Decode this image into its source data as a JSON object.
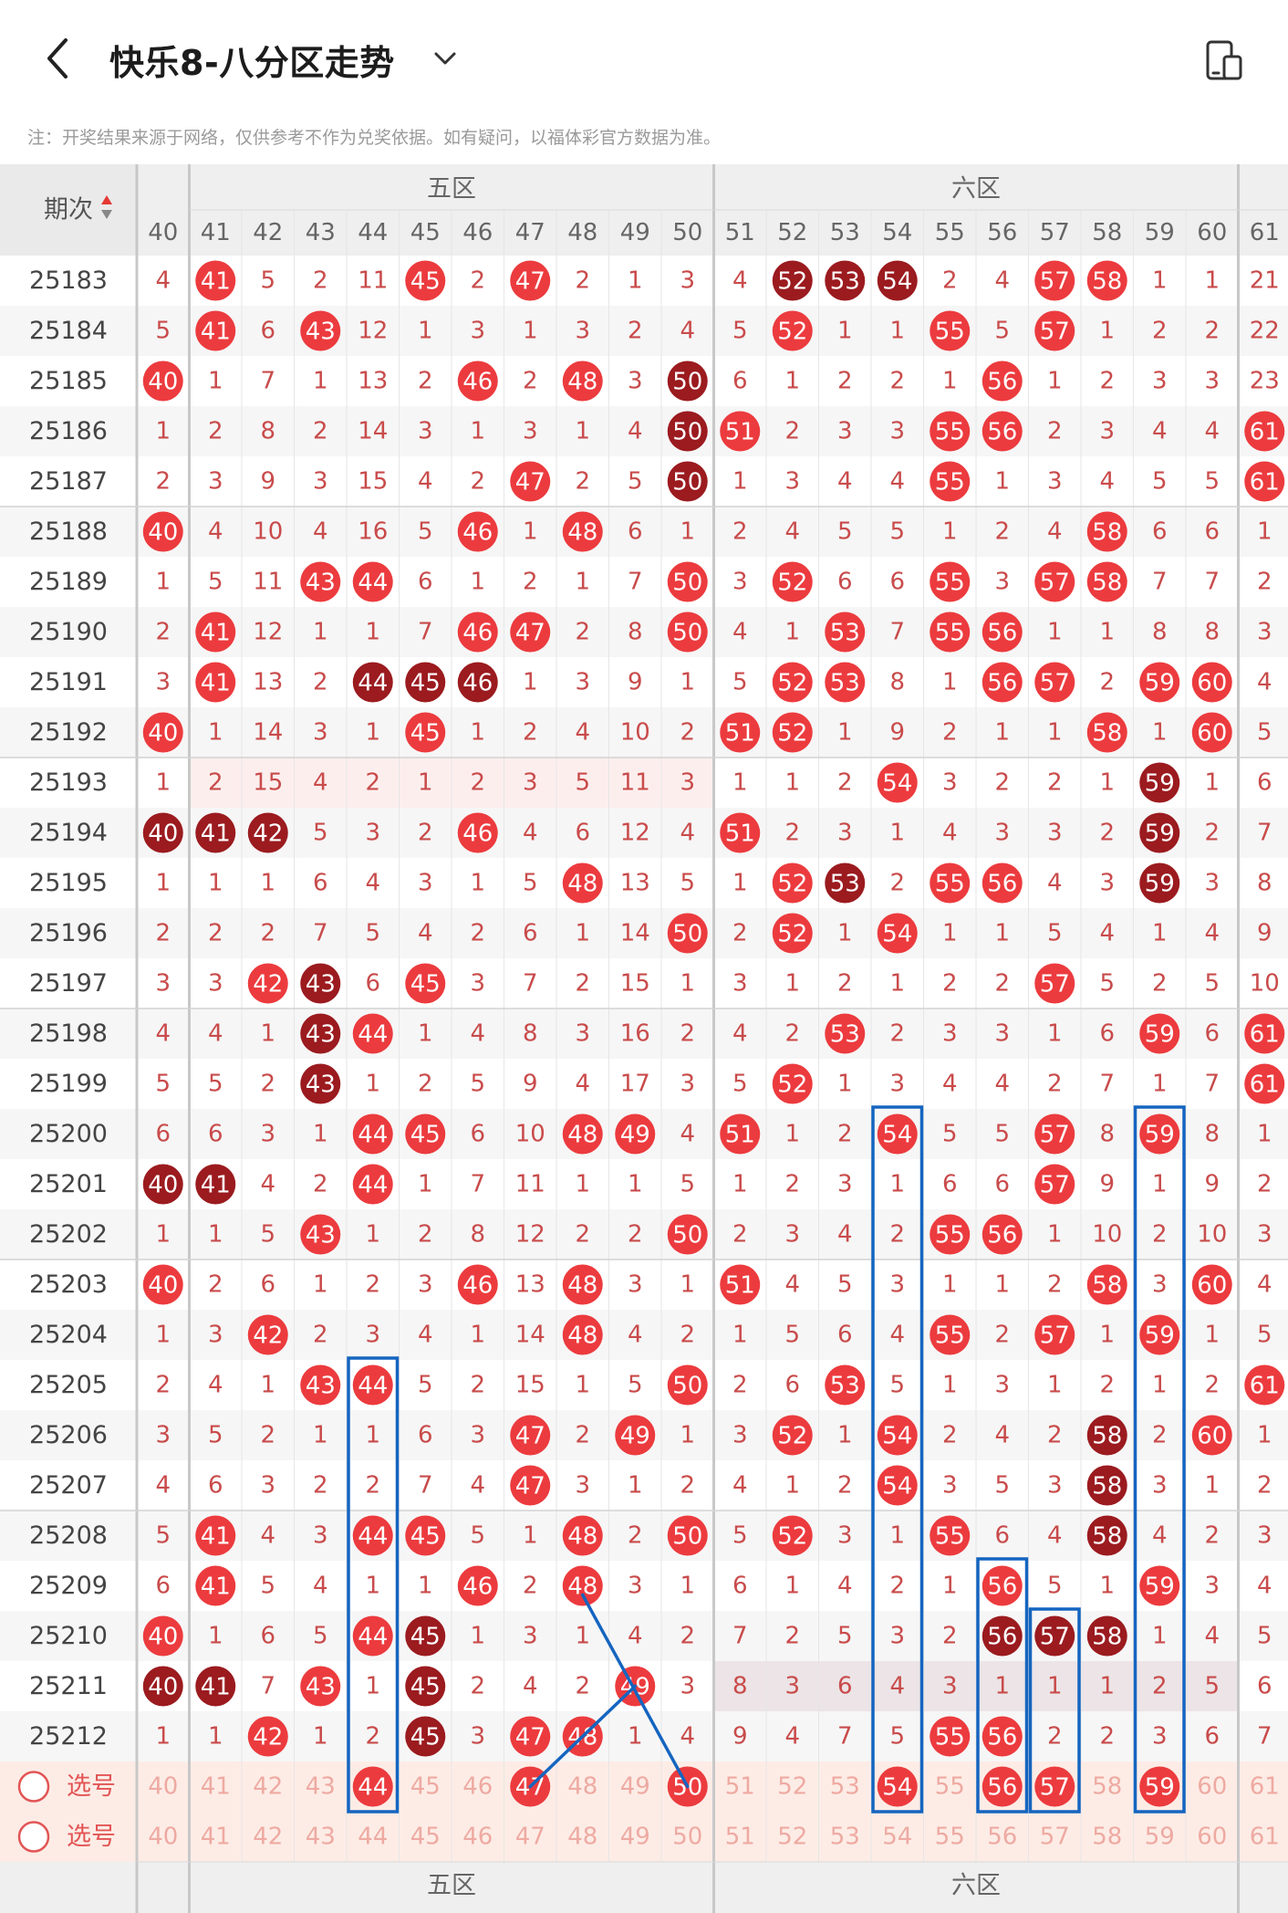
{
  "header": {
    "title": "快乐8-八分区走势",
    "notice": "注：开奖结果来源于网络，仅供参考不作为兑奖依据。如有疑问，以福体彩官方数据为准。"
  },
  "table": {
    "period_header": "期次",
    "zones": [
      {
        "label": "五区",
        "from": 41,
        "to": 50
      },
      {
        "label": "六区",
        "from": 51,
        "to": 60
      }
    ],
    "columns": [
      40,
      41,
      42,
      43,
      44,
      45,
      46,
      47,
      48,
      49,
      50,
      51,
      52,
      53,
      54,
      55,
      56,
      57,
      58,
      59,
      60,
      61
    ],
    "select_label": "选号",
    "rows": [
      {
        "period": "25183",
        "cells": [
          "4",
          "41",
          "5",
          "2",
          "11",
          "45",
          "2",
          "47",
          "2",
          "1",
          "3",
          "4",
          "52",
          "53",
          "54",
          "2",
          "4",
          "57",
          "58",
          "1",
          "1",
          "21"
        ],
        "hot": [
          41,
          45,
          47,
          57,
          58
        ],
        "dark": [
          52,
          53,
          54
        ]
      },
      {
        "period": "25184",
        "cells": [
          "5",
          "41",
          "6",
          "43",
          "12",
          "1",
          "3",
          "1",
          "3",
          "2",
          "4",
          "5",
          "52",
          "1",
          "1",
          "55",
          "5",
          "57",
          "1",
          "2",
          "2",
          "22"
        ],
        "hot": [
          41,
          43,
          52,
          55,
          57
        ],
        "dark": []
      },
      {
        "period": "25185",
        "cells": [
          "40",
          "1",
          "7",
          "1",
          "13",
          "2",
          "46",
          "2",
          "48",
          "3",
          "50",
          "6",
          "1",
          "2",
          "2",
          "1",
          "56",
          "1",
          "2",
          "3",
          "3",
          "23"
        ],
        "hot": [
          40,
          46,
          48,
          56
        ],
        "dark": [
          50
        ]
      },
      {
        "period": "25186",
        "cells": [
          "1",
          "2",
          "8",
          "2",
          "14",
          "3",
          "1",
          "3",
          "1",
          "4",
          "50",
          "51",
          "2",
          "3",
          "3",
          "55",
          "56",
          "2",
          "3",
          "4",
          "4",
          "61"
        ],
        "hot": [
          51,
          55,
          56,
          61
        ],
        "dark": [
          50
        ]
      },
      {
        "period": "25187",
        "cells": [
          "2",
          "3",
          "9",
          "3",
          "15",
          "4",
          "2",
          "47",
          "2",
          "5",
          "50",
          "1",
          "3",
          "4",
          "4",
          "55",
          "1",
          "3",
          "4",
          "5",
          "5",
          "61"
        ],
        "hot": [
          47,
          55,
          61
        ],
        "dark": [
          50
        ]
      },
      {
        "period": "25188",
        "cells": [
          "40",
          "4",
          "10",
          "4",
          "16",
          "5",
          "46",
          "1",
          "48",
          "6",
          "1",
          "2",
          "4",
          "5",
          "5",
          "1",
          "2",
          "4",
          "58",
          "6",
          "6",
          "1"
        ],
        "hot": [
          40,
          46,
          48,
          58
        ],
        "dark": []
      },
      {
        "period": "25189",
        "cells": [
          "1",
          "5",
          "11",
          "43",
          "44",
          "6",
          "1",
          "2",
          "1",
          "7",
          "50",
          "3",
          "52",
          "6",
          "6",
          "55",
          "3",
          "57",
          "58",
          "7",
          "7",
          "2"
        ],
        "hot": [
          43,
          44,
          50,
          52,
          55,
          57,
          58
        ],
        "dark": []
      },
      {
        "period": "25190",
        "cells": [
          "2",
          "41",
          "12",
          "1",
          "1",
          "7",
          "46",
          "47",
          "2",
          "8",
          "50",
          "4",
          "1",
          "53",
          "7",
          "55",
          "56",
          "1",
          "1",
          "8",
          "8",
          "3"
        ],
        "hot": [
          41,
          46,
          47,
          50,
          53,
          55,
          56
        ],
        "dark": []
      },
      {
        "period": "25191",
        "cells": [
          "3",
          "41",
          "13",
          "2",
          "44",
          "45",
          "46",
          "1",
          "3",
          "9",
          "1",
          "5",
          "52",
          "53",
          "8",
          "1",
          "56",
          "57",
          "2",
          "59",
          "60",
          "4"
        ],
        "hot": [
          41,
          52,
          53,
          56,
          57,
          59,
          60
        ],
        "dark": [
          44,
          45,
          46
        ]
      },
      {
        "period": "25192",
        "cells": [
          "40",
          "1",
          "14",
          "3",
          "1",
          "45",
          "1",
          "2",
          "4",
          "10",
          "2",
          "51",
          "52",
          "1",
          "9",
          "2",
          "1",
          "1",
          "58",
          "1",
          "60",
          "5"
        ],
        "hot": [
          40,
          45,
          51,
          52,
          58,
          60
        ],
        "dark": []
      },
      {
        "period": "25193",
        "cells": [
          "1",
          "2",
          "15",
          "4",
          "2",
          "1",
          "2",
          "3",
          "5",
          "11",
          "3",
          "1",
          "1",
          "2",
          "54",
          "3",
          "2",
          "2",
          "1",
          "59",
          "1",
          "6"
        ],
        "hot": [
          54
        ],
        "dark": [
          59
        ]
      },
      {
        "period": "25194",
        "cells": [
          "40",
          "41",
          "42",
          "5",
          "3",
          "2",
          "46",
          "4",
          "6",
          "12",
          "4",
          "51",
          "2",
          "3",
          "1",
          "4",
          "3",
          "3",
          "2",
          "59",
          "2",
          "7"
        ],
        "hot": [
          46,
          51
        ],
        "dark": [
          40,
          41,
          42,
          59
        ]
      },
      {
        "period": "25195",
        "cells": [
          "1",
          "1",
          "1",
          "6",
          "4",
          "3",
          "1",
          "5",
          "48",
          "13",
          "5",
          "1",
          "52",
          "53",
          "2",
          "55",
          "56",
          "4",
          "3",
          "59",
          "3",
          "8"
        ],
        "hot": [
          48,
          52,
          55,
          56
        ],
        "dark": [
          53,
          59
        ]
      },
      {
        "period": "25196",
        "cells": [
          "2",
          "2",
          "2",
          "7",
          "5",
          "4",
          "2",
          "6",
          "1",
          "14",
          "50",
          "2",
          "52",
          "1",
          "54",
          "1",
          "1",
          "5",
          "4",
          "1",
          "4",
          "9"
        ],
        "hot": [
          50,
          52,
          54
        ],
        "dark": []
      },
      {
        "period": "25197",
        "cells": [
          "3",
          "3",
          "42",
          "43",
          "6",
          "45",
          "3",
          "7",
          "2",
          "15",
          "1",
          "3",
          "1",
          "2",
          "1",
          "2",
          "2",
          "57",
          "5",
          "2",
          "5",
          "10"
        ],
        "hot": [
          42,
          45,
          57
        ],
        "dark": [
          43
        ]
      },
      {
        "period": "25198",
        "cells": [
          "4",
          "4",
          "1",
          "43",
          "44",
          "1",
          "4",
          "8",
          "3",
          "16",
          "2",
          "4",
          "2",
          "53",
          "2",
          "3",
          "3",
          "1",
          "6",
          "59",
          "6",
          "61"
        ],
        "hot": [
          44,
          53,
          59,
          61
        ],
        "dark": [
          43
        ]
      },
      {
        "period": "25199",
        "cells": [
          "5",
          "5",
          "2",
          "43",
          "1",
          "2",
          "5",
          "9",
          "4",
          "17",
          "3",
          "5",
          "52",
          "1",
          "3",
          "4",
          "4",
          "2",
          "7",
          "1",
          "7",
          "61"
        ],
        "hot": [
          52,
          61
        ],
        "dark": [
          43
        ]
      },
      {
        "period": "25200",
        "cells": [
          "6",
          "6",
          "3",
          "1",
          "44",
          "45",
          "6",
          "10",
          "48",
          "49",
          "4",
          "51",
          "1",
          "2",
          "54",
          "5",
          "5",
          "57",
          "8",
          "59",
          "8",
          "1"
        ],
        "hot": [
          44,
          45,
          48,
          49,
          51,
          54,
          57,
          59
        ],
        "dark": []
      },
      {
        "period": "25201",
        "cells": [
          "40",
          "41",
          "4",
          "2",
          "44",
          "1",
          "7",
          "11",
          "1",
          "1",
          "5",
          "1",
          "2",
          "3",
          "1",
          "6",
          "6",
          "57",
          "9",
          "1",
          "9",
          "2"
        ],
        "hot": [
          44,
          57
        ],
        "dark": [
          40,
          41
        ]
      },
      {
        "period": "25202",
        "cells": [
          "1",
          "1",
          "5",
          "43",
          "1",
          "2",
          "8",
          "12",
          "2",
          "2",
          "50",
          "2",
          "3",
          "4",
          "2",
          "55",
          "56",
          "1",
          "10",
          "2",
          "10",
          "3"
        ],
        "hot": [
          43,
          50,
          55,
          56
        ],
        "dark": []
      },
      {
        "period": "25203",
        "cells": [
          "40",
          "2",
          "6",
          "1",
          "2",
          "3",
          "46",
          "13",
          "48",
          "3",
          "1",
          "51",
          "4",
          "5",
          "3",
          "1",
          "1",
          "2",
          "58",
          "3",
          "60",
          "4"
        ],
        "hot": [
          40,
          46,
          48,
          51,
          58,
          60
        ],
        "dark": []
      },
      {
        "period": "25204",
        "cells": [
          "1",
          "3",
          "42",
          "2",
          "3",
          "4",
          "1",
          "14",
          "48",
          "4",
          "2",
          "1",
          "5",
          "6",
          "4",
          "55",
          "2",
          "57",
          "1",
          "59",
          "1",
          "5"
        ],
        "hot": [
          42,
          48,
          55,
          57,
          59
        ],
        "dark": []
      },
      {
        "period": "25205",
        "cells": [
          "2",
          "4",
          "1",
          "43",
          "44",
          "5",
          "2",
          "15",
          "1",
          "5",
          "50",
          "2",
          "6",
          "53",
          "5",
          "1",
          "3",
          "1",
          "2",
          "1",
          "2",
          "61"
        ],
        "hot": [
          43,
          44,
          50,
          53,
          61
        ],
        "dark": []
      },
      {
        "period": "25206",
        "cells": [
          "3",
          "5",
          "2",
          "1",
          "1",
          "6",
          "3",
          "47",
          "2",
          "49",
          "1",
          "3",
          "52",
          "1",
          "54",
          "2",
          "4",
          "2",
          "58",
          "2",
          "60",
          "1"
        ],
        "hot": [
          47,
          49,
          52,
          54,
          60
        ],
        "dark": [
          58
        ]
      },
      {
        "period": "25207",
        "cells": [
          "4",
          "6",
          "3",
          "2",
          "2",
          "7",
          "4",
          "47",
          "3",
          "1",
          "2",
          "4",
          "1",
          "2",
          "54",
          "3",
          "5",
          "3",
          "58",
          "3",
          "1",
          "2"
        ],
        "hot": [
          47,
          54
        ],
        "dark": [
          58
        ]
      },
      {
        "period": "25208",
        "cells": [
          "5",
          "41",
          "4",
          "3",
          "44",
          "45",
          "5",
          "1",
          "48",
          "2",
          "50",
          "5",
          "52",
          "3",
          "1",
          "55",
          "6",
          "4",
          "58",
          "4",
          "2",
          "3"
        ],
        "hot": [
          41,
          44,
          45,
          48,
          50,
          52,
          55
        ],
        "dark": [
          58
        ]
      },
      {
        "period": "25209",
        "cells": [
          "6",
          "41",
          "5",
          "4",
          "1",
          "1",
          "46",
          "2",
          "48",
          "3",
          "1",
          "6",
          "1",
          "4",
          "2",
          "1",
          "56",
          "5",
          "1",
          "59",
          "3",
          "4"
        ],
        "hot": [
          41,
          46,
          48,
          56,
          59
        ],
        "dark": []
      },
      {
        "period": "25210",
        "cells": [
          "40",
          "1",
          "6",
          "5",
          "44",
          "45",
          "1",
          "3",
          "1",
          "4",
          "2",
          "7",
          "2",
          "5",
          "3",
          "2",
          "56",
          "57",
          "58",
          "1",
          "4",
          "5"
        ],
        "hot": [
          40,
          44
        ],
        "dark": [
          45,
          56,
          57,
          58
        ]
      },
      {
        "period": "25211",
        "cells": [
          "40",
          "41",
          "7",
          "43",
          "1",
          "45",
          "2",
          "4",
          "2",
          "49",
          "3",
          "8",
          "3",
          "6",
          "4",
          "3",
          "1",
          "1",
          "1",
          "2",
          "5",
          "6"
        ],
        "hot": [
          43,
          49
        ],
        "dark": [
          40,
          41,
          45
        ]
      },
      {
        "period": "25212",
        "cells": [
          "1",
          "1",
          "42",
          "1",
          "2",
          "45",
          "3",
          "47",
          "48",
          "1",
          "4",
          "9",
          "4",
          "7",
          "5",
          "55",
          "56",
          "2",
          "2",
          "3",
          "6",
          "7"
        ],
        "hot": [
          42,
          47,
          48,
          55,
          56
        ],
        "dark": [
          45
        ]
      }
    ],
    "select_hot": [
      44,
      47,
      50,
      54,
      56,
      57,
      59
    ]
  },
  "colors": {
    "hot": "#ec3b3e",
    "dark": "#9b1b1f",
    "text": "#c94b4b",
    "line": "#1565c0"
  }
}
